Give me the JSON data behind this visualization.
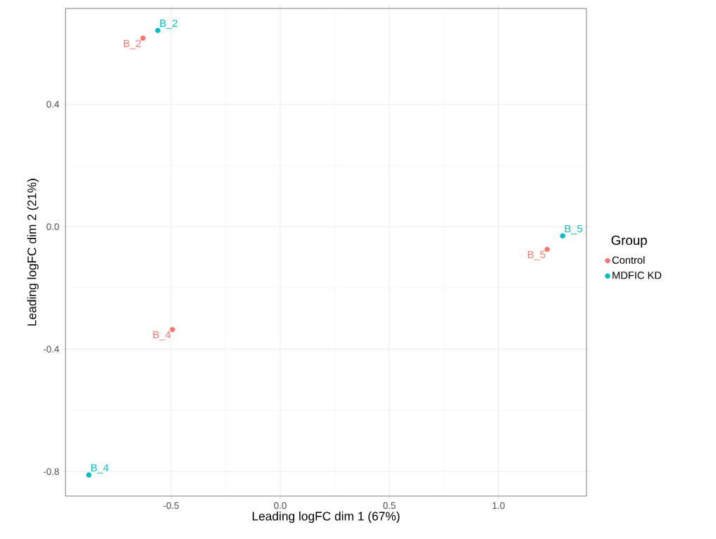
{
  "chart_data": {
    "type": "scatter",
    "xlabel": "Leading logFC dim 1 (67%)",
    "ylabel": "Leading logFC dim 2 (21%)",
    "legend_title": "Group",
    "xlim": [
      -0.984,
      1.403
    ],
    "ylim": [
      -0.88,
      0.713
    ],
    "xticks": [
      {
        "value": -0.5,
        "label": "-0.5"
      },
      {
        "value": 0,
        "label": "0.0"
      },
      {
        "value": 0.5,
        "label": "0.5"
      },
      {
        "value": 1,
        "label": "1.0"
      }
    ],
    "yticks": [
      {
        "value": -0.8,
        "label": "-0.8"
      },
      {
        "value": -0.4,
        "label": "-0.4"
      },
      {
        "value": 0,
        "label": "0.0"
      },
      {
        "value": 0.4,
        "label": "0.4"
      }
    ],
    "grid": true,
    "legend": "right",
    "marker": "circle",
    "series": [
      {
        "name": "Control",
        "color": "#f8766d",
        "x": [
          -0.629,
          -0.494,
          1.223
        ],
        "values": [
          0.616,
          -0.336,
          -0.074
        ]
      },
      {
        "name": "MDFIC KD",
        "color": "#00bfc4",
        "x": [
          -0.561,
          -0.877,
          1.294
        ],
        "values": [
          0.641,
          -0.811,
          -0.03
        ]
      }
    ],
    "annotations": [
      {
        "text": "B_2",
        "x": -0.629,
        "y": 0.616
      },
      {
        "text": "B_4",
        "x": -0.494,
        "y": -0.336
      },
      {
        "text": "B_5",
        "x": 1.223,
        "y": -0.074
      },
      {
        "text": "B_2",
        "x": -0.561,
        "y": 0.641
      },
      {
        "text": "B_4",
        "x": -0.877,
        "y": -0.811
      },
      {
        "text": "B_5",
        "x": 1.294,
        "y": -0.03
      }
    ]
  }
}
